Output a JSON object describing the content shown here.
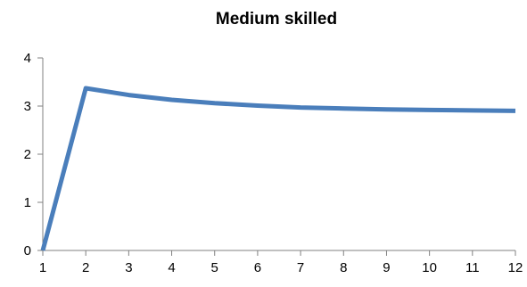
{
  "chart_data": {
    "type": "line",
    "title": "Medium skilled",
    "xlabel": "",
    "ylabel": "",
    "x": [
      1,
      2,
      3,
      4,
      5,
      6,
      7,
      8,
      9,
      10,
      11,
      12
    ],
    "series": [
      {
        "values": [
          0,
          3.37,
          3.23,
          3.13,
          3.06,
          3.01,
          2.97,
          2.95,
          2.93,
          2.92,
          2.91,
          2.9
        ],
        "color": "#4a7ebb"
      }
    ],
    "xlim": [
      1,
      12
    ],
    "ylim": [
      0,
      4
    ],
    "x_ticks": [
      "1",
      "2",
      "3",
      "4",
      "5",
      "6",
      "7",
      "8",
      "9",
      "10",
      "11",
      "12"
    ],
    "y_ticks": [
      "0",
      "1",
      "2",
      "3",
      "4"
    ],
    "grid": false,
    "legend": "none"
  }
}
